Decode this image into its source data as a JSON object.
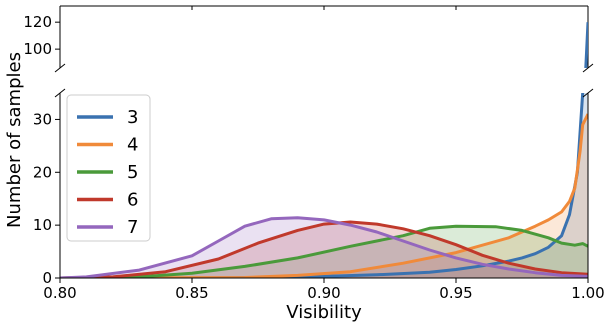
{
  "chart_data": {
    "type": "area",
    "xlabel": "Visibility",
    "ylabel": "Number of samples",
    "xlim": [
      0.8,
      1.0
    ],
    "x_ticks": [
      "0.80",
      "0.85",
      "0.90",
      "0.95",
      "1.00"
    ],
    "broken_y_axis": true,
    "upper_ylim": [
      86,
      132
    ],
    "upper_y_ticks": [
      "100",
      "120"
    ],
    "lower_ylim": [
      0,
      35
    ],
    "lower_y_ticks": [
      "0",
      "10",
      "20",
      "30"
    ],
    "legend_position": "upper-left",
    "series": [
      {
        "name": "3",
        "color": "#3a72b0",
        "points": [
          [
            0.8,
            0
          ],
          [
            0.85,
            0
          ],
          [
            0.88,
            0.1
          ],
          [
            0.9,
            0.3
          ],
          [
            0.92,
            0.6
          ],
          [
            0.94,
            1.1
          ],
          [
            0.95,
            1.6
          ],
          [
            0.96,
            2.3
          ],
          [
            0.97,
            3.2
          ],
          [
            0.975,
            3.8
          ],
          [
            0.98,
            4.6
          ],
          [
            0.985,
            5.8
          ],
          [
            0.99,
            8
          ],
          [
            0.993,
            12
          ],
          [
            0.996,
            20
          ],
          [
            0.998,
            35
          ],
          [
            0.999,
            80
          ],
          [
            1.0,
            120
          ]
        ]
      },
      {
        "name": "4",
        "color": "#f08a3a",
        "points": [
          [
            0.8,
            0
          ],
          [
            0.87,
            0.1
          ],
          [
            0.89,
            0.5
          ],
          [
            0.91,
            1.2
          ],
          [
            0.93,
            2.8
          ],
          [
            0.95,
            4.8
          ],
          [
            0.97,
            7.6
          ],
          [
            0.98,
            9.8
          ],
          [
            0.985,
            11
          ],
          [
            0.99,
            12.5
          ],
          [
            0.993,
            14.5
          ],
          [
            0.995,
            17
          ],
          [
            0.997,
            24
          ],
          [
            0.998,
            29
          ],
          [
            1.0,
            31
          ]
        ]
      },
      {
        "name": "5",
        "color": "#4a9a3a",
        "points": [
          [
            0.8,
            0
          ],
          [
            0.83,
            0.2
          ],
          [
            0.85,
            0.9
          ],
          [
            0.87,
            2.2
          ],
          [
            0.89,
            3.8
          ],
          [
            0.91,
            6
          ],
          [
            0.93,
            8
          ],
          [
            0.94,
            9.4
          ],
          [
            0.95,
            9.8
          ],
          [
            0.965,
            9.7
          ],
          [
            0.975,
            9
          ],
          [
            0.985,
            7.6
          ],
          [
            0.99,
            6.6
          ],
          [
            0.995,
            6.2
          ],
          [
            0.998,
            6.5
          ],
          [
            1.0,
            6
          ]
        ]
      },
      {
        "name": "6",
        "color": "#c0392b",
        "points": [
          [
            0.8,
            0
          ],
          [
            0.82,
            0.2
          ],
          [
            0.84,
            1.2
          ],
          [
            0.86,
            3.6
          ],
          [
            0.875,
            6.6
          ],
          [
            0.89,
            9
          ],
          [
            0.9,
            10.2
          ],
          [
            0.91,
            10.6
          ],
          [
            0.92,
            10.2
          ],
          [
            0.93,
            9.3
          ],
          [
            0.94,
            8
          ],
          [
            0.95,
            6.3
          ],
          [
            0.96,
            4.3
          ],
          [
            0.97,
            2.8
          ],
          [
            0.98,
            1.7
          ],
          [
            0.99,
            1
          ],
          [
            1.0,
            0.7
          ]
        ]
      },
      {
        "name": "7",
        "color": "#9467bd",
        "points": [
          [
            0.8,
            0
          ],
          [
            0.81,
            0.2
          ],
          [
            0.83,
            1.5
          ],
          [
            0.85,
            4.2
          ],
          [
            0.86,
            7
          ],
          [
            0.87,
            9.8
          ],
          [
            0.88,
            11.2
          ],
          [
            0.89,
            11.4
          ],
          [
            0.9,
            11
          ],
          [
            0.91,
            10
          ],
          [
            0.92,
            8.7
          ],
          [
            0.93,
            7
          ],
          [
            0.94,
            5.3
          ],
          [
            0.95,
            3.8
          ],
          [
            0.96,
            2.6
          ],
          [
            0.97,
            1.7
          ],
          [
            0.98,
            1
          ],
          [
            0.99,
            0.5
          ],
          [
            1.0,
            0.3
          ]
        ]
      }
    ]
  }
}
